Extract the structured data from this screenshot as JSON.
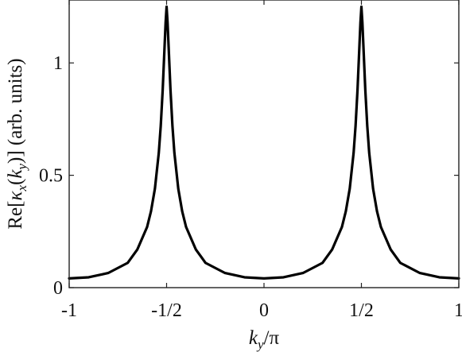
{
  "chart_data": {
    "type": "line",
    "title": "",
    "xlabel": {
      "base": "k",
      "sub": "y",
      "suffix": "/π"
    },
    "ylabel": {
      "pre": "Re[",
      "kappa": "κ",
      "sub1": "x",
      "lp": "(",
      "k": "k",
      "sub2": "y",
      "rp": ")]",
      "units": " (arb. units)"
    },
    "xlim": [
      -1,
      1
    ],
    "ylim": [
      0,
      1.28
    ],
    "grid": false,
    "xticks": [
      -1,
      -0.5,
      0,
      0.5,
      1
    ],
    "xtick_labels": [
      "-1",
      "-1/2",
      "0",
      "1/2",
      "1"
    ],
    "yticks": [
      0,
      0.5,
      1
    ],
    "ytick_labels": [
      "0",
      "0.5",
      "1"
    ],
    "series": [
      {
        "color": "#000000",
        "x": [
          -1,
          -0.9,
          -0.8,
          -0.7,
          -0.65,
          -0.6,
          -0.58,
          -0.56,
          -0.54,
          -0.53,
          -0.52,
          -0.51,
          -0.505,
          -0.5,
          -0.495,
          -0.49,
          -0.48,
          -0.47,
          -0.46,
          -0.44,
          -0.42,
          -0.4,
          -0.35,
          -0.3,
          -0.2,
          -0.1,
          0,
          0.1,
          0.2,
          0.3,
          0.35,
          0.4,
          0.42,
          0.44,
          0.46,
          0.47,
          0.48,
          0.49,
          0.495,
          0.5,
          0.505,
          0.51,
          0.52,
          0.53,
          0.54,
          0.56,
          0.58,
          0.6,
          0.65,
          0.7,
          0.8,
          0.9,
          1
        ],
        "y": [
          0.041,
          0.046,
          0.065,
          0.11,
          0.17,
          0.27,
          0.34,
          0.44,
          0.6,
          0.72,
          0.88,
          1.08,
          1.18,
          1.25,
          1.18,
          1.08,
          0.88,
          0.72,
          0.6,
          0.44,
          0.34,
          0.27,
          0.17,
          0.11,
          0.065,
          0.046,
          0.041,
          0.046,
          0.065,
          0.11,
          0.17,
          0.27,
          0.34,
          0.44,
          0.6,
          0.72,
          0.88,
          1.08,
          1.18,
          1.25,
          1.18,
          1.08,
          0.88,
          0.72,
          0.6,
          0.44,
          0.34,
          0.27,
          0.17,
          0.11,
          0.065,
          0.046,
          0.041
        ]
      }
    ]
  }
}
